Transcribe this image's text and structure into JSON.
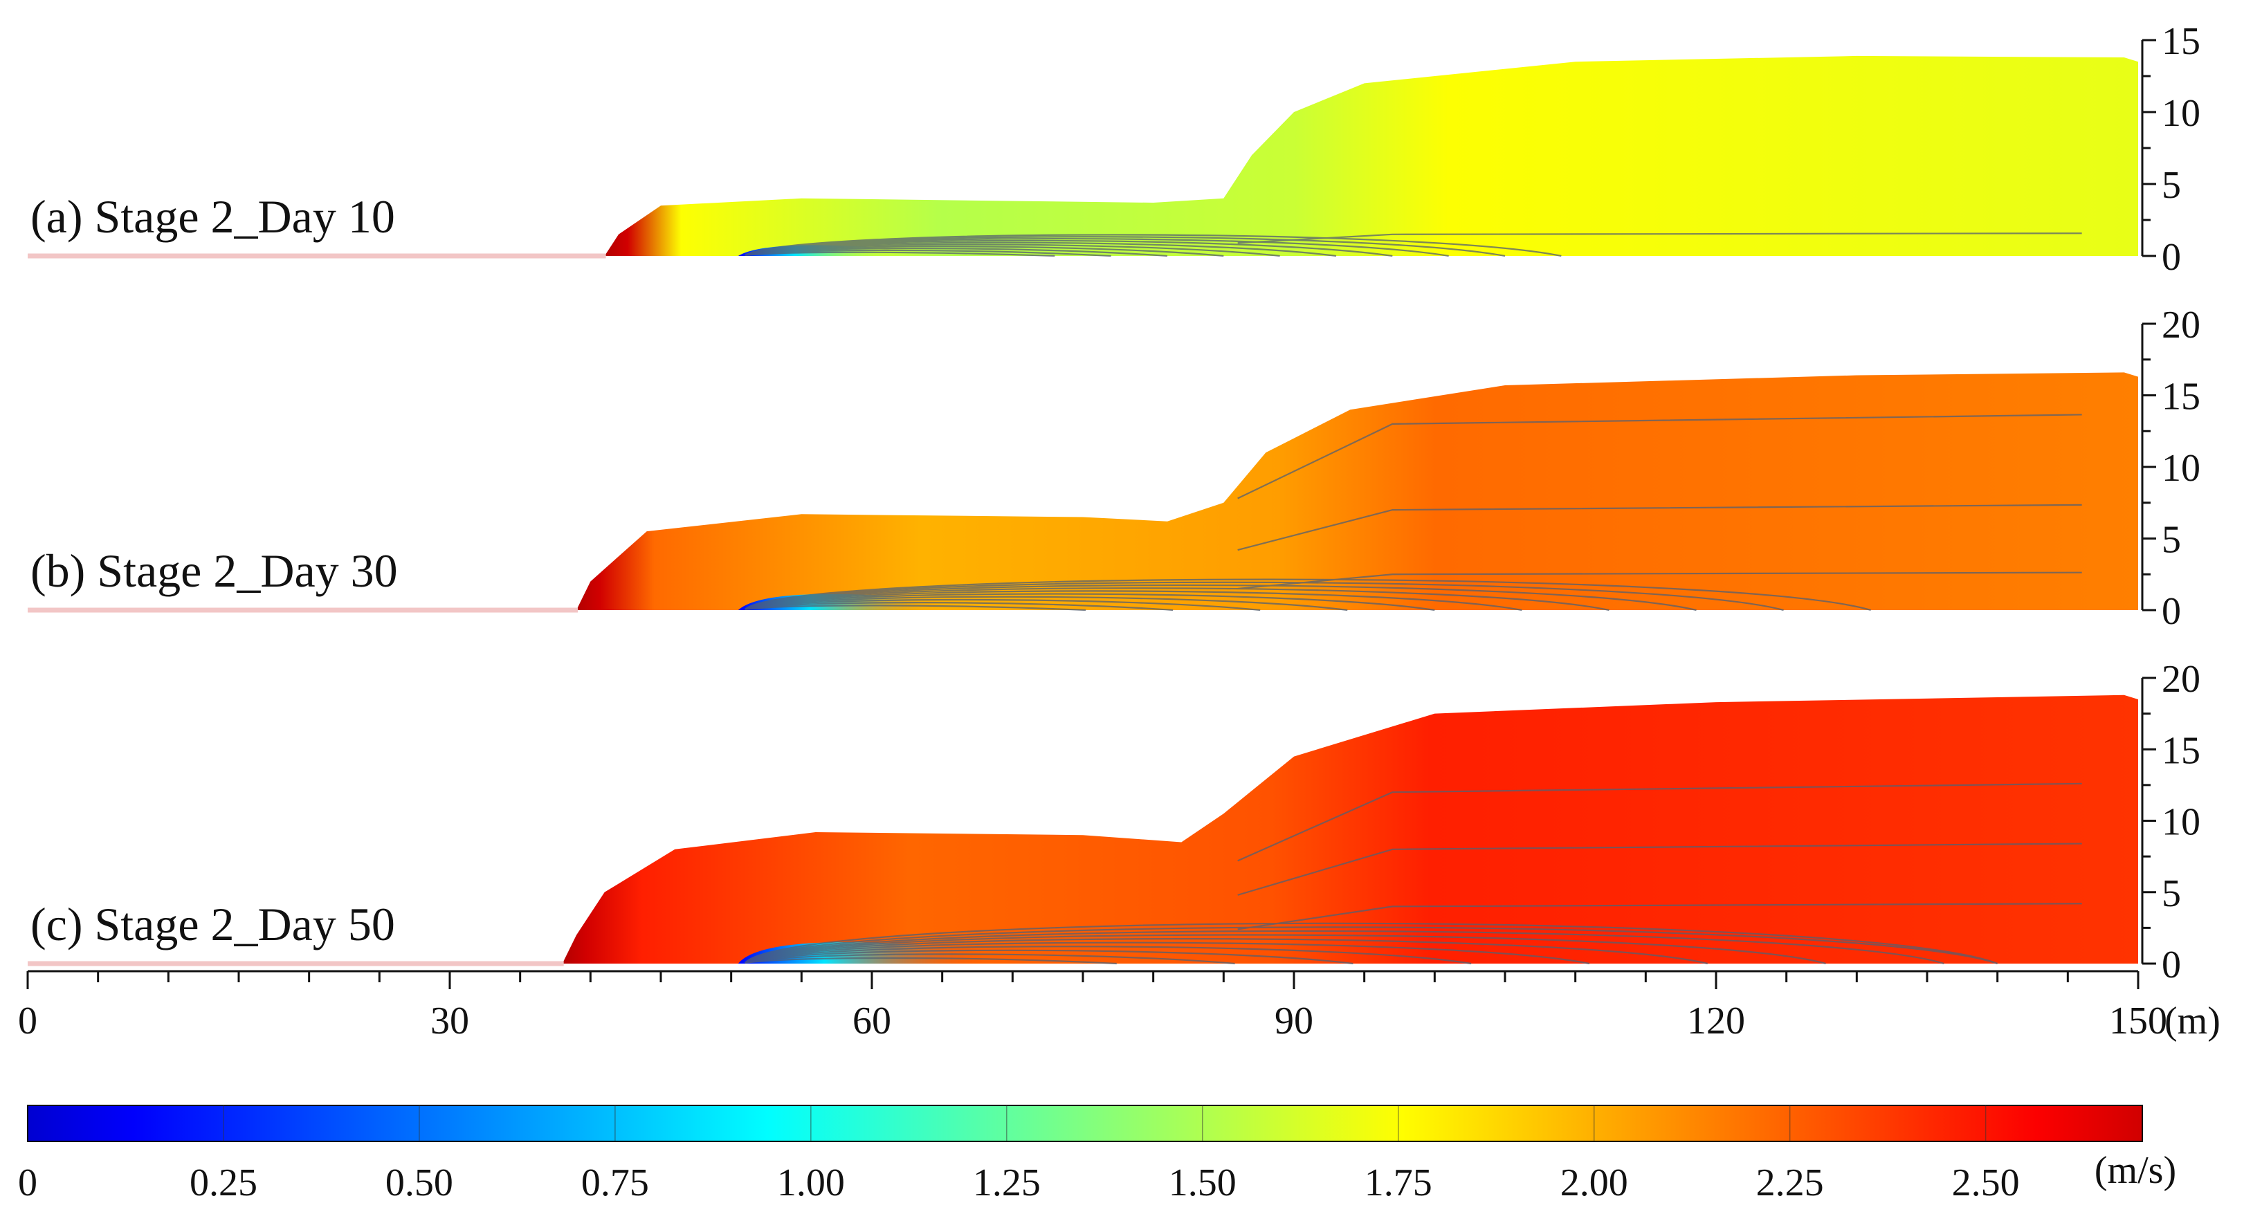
{
  "chart_data": [
    {
      "type": "heatmap",
      "panel_label": "(a) Stage 2_Day 10",
      "x_unit": "(m)",
      "xlim": [
        0,
        150
      ],
      "ylim": [
        0,
        15
      ],
      "y_ticks": [
        0,
        5,
        10,
        15
      ],
      "fill_value": 1.6,
      "surface_profile": [
        [
          0,
          0
        ],
        [
          41,
          0
        ],
        [
          42,
          1.5
        ],
        [
          45,
          3.5
        ],
        [
          55,
          4
        ],
        [
          80,
          3.7
        ],
        [
          85,
          4
        ],
        [
          87,
          7
        ],
        [
          90,
          10
        ],
        [
          95,
          12
        ],
        [
          110,
          13.5
        ],
        [
          130,
          13.9
        ],
        [
          149,
          13.8
        ],
        [
          150,
          13.5
        ]
      ]
    },
    {
      "type": "heatmap",
      "panel_label": "(b) Stage 2_Day 30",
      "x_unit": "(m)",
      "xlim": [
        0,
        150
      ],
      "ylim": [
        0,
        20
      ],
      "y_ticks": [
        0,
        5,
        10,
        15,
        20
      ],
      "fill_value": 2.0,
      "surface_profile": [
        [
          0,
          0
        ],
        [
          39,
          0
        ],
        [
          40,
          2
        ],
        [
          44,
          5.5
        ],
        [
          55,
          6.7
        ],
        [
          75,
          6.5
        ],
        [
          81,
          6.2
        ],
        [
          85,
          7.5
        ],
        [
          88,
          11
        ],
        [
          94,
          14
        ],
        [
          105,
          15.7
        ],
        [
          130,
          16.4
        ],
        [
          149,
          16.6
        ],
        [
          150,
          16.3
        ]
      ]
    },
    {
      "type": "heatmap",
      "panel_label": "(c) Stage 2_Day 50",
      "x_unit": "(m)",
      "xlim": [
        0,
        150
      ],
      "ylim": [
        0,
        20
      ],
      "y_ticks": [
        0,
        5,
        10,
        15,
        20
      ],
      "fill_value": 2.2,
      "surface_profile": [
        [
          0,
          0
        ],
        [
          38,
          0
        ],
        [
          39,
          2
        ],
        [
          41,
          5
        ],
        [
          46,
          8
        ],
        [
          56,
          9.2
        ],
        [
          75,
          9
        ],
        [
          82,
          8.5
        ],
        [
          85,
          10.5
        ],
        [
          90,
          14.5
        ],
        [
          100,
          17.5
        ],
        [
          120,
          18.3
        ],
        [
          149,
          18.8
        ],
        [
          150,
          18.5
        ]
      ]
    }
  ],
  "x_axis": {
    "min": 0,
    "max": 150,
    "major_ticks": [
      0,
      30,
      60,
      90,
      120,
      150
    ],
    "minor_step": 5,
    "tick_labels": [
      "0",
      "30",
      "60",
      "90",
      "120",
      "150"
    ],
    "unit": "(m)"
  },
  "colorbar": {
    "min": 0,
    "max": 2.7,
    "unit": "(m/s)",
    "colormap": "jet",
    "tick_values": [
      0,
      0.25,
      0.5,
      0.75,
      1.0,
      1.25,
      1.5,
      1.75,
      2.0,
      2.25,
      2.5
    ],
    "tick_labels": [
      "0",
      "0.25",
      "0.50",
      "0.75",
      "1.00",
      "1.25",
      "1.50",
      "1.75",
      "2.00",
      "2.25",
      "2.50"
    ]
  },
  "colors": {
    "bed_line": "#f2c6c6",
    "contour": "#556070",
    "axis": "#111111"
  }
}
